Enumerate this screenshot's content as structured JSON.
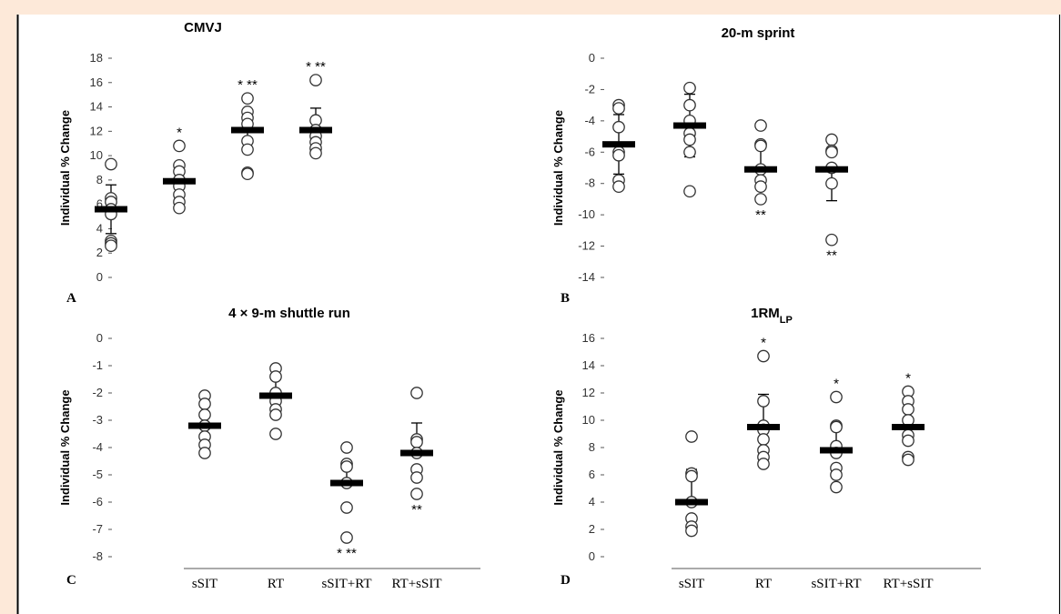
{
  "chart_data": [
    {
      "type": "scatter",
      "panel": "A",
      "title": "CMVJ",
      "title_sub": "",
      "ylabel": "Individual % Change",
      "ylim": [
        0,
        18
      ],
      "ytick_step": 2,
      "categories": [
        "sSIT",
        "RT",
        "sSIT+RT",
        "RT+sSIT"
      ],
      "show_category_labels": false,
      "groups": [
        {
          "points": [
            9.3,
            6.5,
            6.2,
            5.6,
            5.2,
            3.0,
            2.8,
            2.6
          ],
          "mean": 5.6,
          "error": 2.0,
          "error_dir": "both",
          "annotation": "",
          "annotation_pos": "top"
        },
        {
          "points": [
            10.8,
            9.2,
            8.7,
            8.0,
            7.5,
            6.8,
            6.2,
            5.7
          ],
          "mean": 7.9,
          "error": 1.4,
          "error_dir": "up",
          "annotation": "*",
          "annotation_pos": "top"
        },
        {
          "points": [
            14.7,
            13.6,
            13.1,
            12.6,
            11.2,
            10.5,
            8.6,
            8.5
          ],
          "mean": 12.1,
          "error": 1.6,
          "error_dir": "down",
          "annotation": "* **",
          "annotation_pos": "top"
        },
        {
          "points": [
            16.2,
            12.9,
            12.1,
            11.6,
            11.1,
            10.6,
            10.2
          ],
          "mean": 12.1,
          "error": 1.8,
          "error_dir": "up",
          "annotation": "* **",
          "annotation_pos": "top"
        }
      ]
    },
    {
      "type": "scatter",
      "panel": "B",
      "title": "20-m sprint",
      "title_sub": "",
      "ylabel": "Individual % Change",
      "ylim": [
        -14,
        0
      ],
      "ytick_step": 2,
      "categories": [
        "sSIT",
        "RT",
        "sSIT+RT",
        "RT+sSIT"
      ],
      "show_category_labels": false,
      "groups": [
        {
          "points": [
            -3.0,
            -3.2,
            -4.4,
            -6.0,
            -6.2,
            -7.8,
            -8.2
          ],
          "mean": -5.5,
          "error": 1.9,
          "error_dir": "both",
          "annotation": "",
          "annotation_pos": "bottom"
        },
        {
          "points": [
            -1.9,
            -3.0,
            -4.0,
            -4.8,
            -5.2,
            -6.0,
            -8.5
          ],
          "mean": -4.3,
          "error": 2.0,
          "error_dir": "both",
          "annotation": "",
          "annotation_pos": "bottom"
        },
        {
          "points": [
            -4.3,
            -5.5,
            -5.6,
            -7.1,
            -7.8,
            -8.2,
            -9.0
          ],
          "mean": -7.1,
          "error": 1.6,
          "error_dir": "up",
          "annotation": "**",
          "annotation_pos": "bottom"
        },
        {
          "points": [
            -5.2,
            -5.9,
            -6.0,
            -7.0,
            -8.0,
            -11.6
          ],
          "mean": -7.1,
          "error": 2.0,
          "error_dir": "down",
          "annotation": "**",
          "annotation_pos": "bottom"
        }
      ]
    },
    {
      "type": "scatter",
      "panel": "C",
      "title": "4 × 9-m shuttle run",
      "title_sub": "",
      "ylabel": "Individual % Change",
      "ylim": [
        -8,
        0
      ],
      "ytick_step": 1,
      "categories": [
        "sSIT",
        "RT",
        "sSIT+RT",
        "RT+sSIT"
      ],
      "show_category_labels": true,
      "groups": [
        {
          "points": [
            -2.1,
            -2.4,
            -2.8,
            -3.2,
            -3.6,
            -3.9,
            -4.2
          ],
          "mean": -3.2,
          "error": 0.7,
          "error_dir": "both",
          "annotation": "",
          "annotation_pos": "bottom"
        },
        {
          "points": [
            -1.1,
            -1.4,
            -2.0,
            -2.3,
            -2.6,
            -2.8,
            -3.5
          ],
          "mean": -2.1,
          "error": 0.6,
          "error_dir": "up",
          "annotation": "",
          "annotation_pos": "bottom"
        },
        {
          "points": [
            -4.0,
            -4.6,
            -4.7,
            -5.3,
            -6.2,
            -7.3
          ],
          "mean": -5.3,
          "error": 0.7,
          "error_dir": "up",
          "annotation": "* **",
          "annotation_pos": "bottom"
        },
        {
          "points": [
            -2.0,
            -3.7,
            -3.8,
            -4.2,
            -4.8,
            -5.1,
            -5.7
          ],
          "mean": -4.2,
          "error": 1.1,
          "error_dir": "up",
          "annotation": "**",
          "annotation_pos": "bottom"
        }
      ]
    },
    {
      "type": "scatter",
      "panel": "D",
      "title": "1RM",
      "title_sub": "LP",
      "ylabel": "Individual % Change",
      "ylim": [
        0,
        16
      ],
      "ytick_step": 2,
      "categories": [
        "sSIT",
        "RT",
        "sSIT+RT",
        "RT+sSIT"
      ],
      "show_category_labels": true,
      "groups": [
        {
          "points": [
            8.8,
            6.1,
            5.9,
            4.0,
            2.8,
            2.2,
            1.9
          ],
          "mean": 4.0,
          "error": 2.4,
          "error_dir": "up",
          "annotation": "",
          "annotation_pos": "top"
        },
        {
          "points": [
            14.7,
            11.4,
            9.6,
            9.3,
            8.6,
            7.8,
            7.3,
            6.8
          ],
          "mean": 9.5,
          "error": 2.4,
          "error_dir": "up",
          "annotation": "*",
          "annotation_pos": "top"
        },
        {
          "points": [
            11.7,
            9.6,
            9.5,
            8.1,
            7.6,
            6.5,
            6.0,
            5.1
          ],
          "mean": 7.8,
          "error": 1.8,
          "error_dir": "up",
          "annotation": "*",
          "annotation_pos": "top"
        },
        {
          "points": [
            12.1,
            11.4,
            10.8,
            10.0,
            8.9,
            8.5,
            7.3,
            7.1
          ],
          "mean": 9.5,
          "error": 1.7,
          "error_dir": "up",
          "annotation": "*",
          "annotation_pos": "top"
        }
      ]
    }
  ]
}
